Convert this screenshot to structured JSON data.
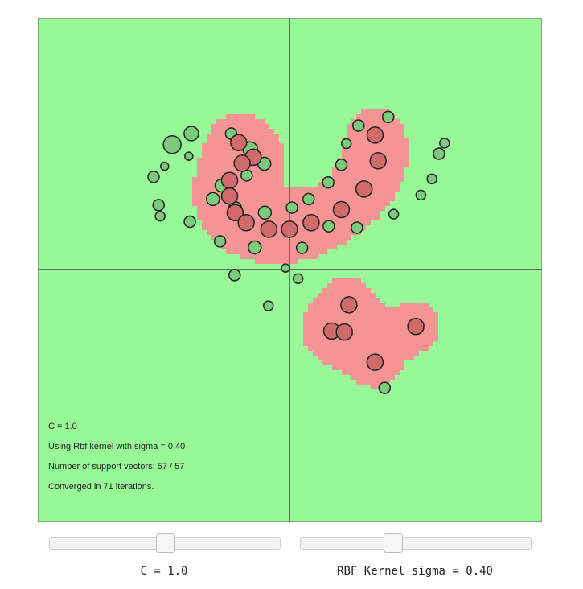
{
  "colors": {
    "class_pos_region": "#98f898",
    "class_neg_region": "#f59494",
    "pos_point": "#7ccb7c",
    "neg_point": "#cf6b6b",
    "axis": "#4f7e4f"
  },
  "info": {
    "c_line": "C = 1.0",
    "kernel_line": "Using Rbf kernel with sigma = 0.40",
    "sv_line": "Number of support vectors: 57 / 57",
    "conv_line": "Converged in 71 iterations."
  },
  "controls": {
    "c_slider": {
      "label": "C = 1.0",
      "value_fraction": 0.5
    },
    "sigma_slider": {
      "label": "RBF Kernel sigma = 0.40",
      "value_fraction": 0.4
    }
  },
  "points": {
    "positive": [
      [
        -1.95,
        2.7
      ],
      [
        -1.16,
        2.7
      ],
      [
        -2.33,
        2.48
      ],
      [
        -0.78,
        2.39
      ],
      [
        -2.0,
        2.25
      ],
      [
        -2.48,
        2.05
      ],
      [
        -0.5,
        2.1
      ],
      [
        -0.85,
        1.87
      ],
      [
        -2.7,
        1.84
      ],
      [
        -1.35,
        1.67
      ],
      [
        -1.52,
        1.4
      ],
      [
        -2.6,
        1.28
      ],
      [
        -1.08,
        1.22
      ],
      [
        -0.49,
        1.13
      ],
      [
        -2.57,
        1.06
      ],
      [
        -1.98,
        0.95
      ],
      [
        -1.38,
        0.56
      ],
      [
        -0.69,
        0.44
      ],
      [
        0.38,
        1.4
      ],
      [
        0.05,
        1.23
      ],
      [
        1.37,
        2.86
      ],
      [
        1.13,
        2.5
      ],
      [
        1.03,
        2.08
      ],
      [
        0.77,
        1.73
      ],
      [
        3.08,
        2.51
      ],
      [
        2.97,
        2.3
      ],
      [
        2.83,
        1.8
      ],
      [
        2.61,
        1.48
      ],
      [
        2.07,
        1.1
      ],
      [
        1.34,
        0.83
      ],
      [
        0.78,
        0.86
      ],
      [
        0.25,
        0.43
      ],
      [
        -0.08,
        0.03
      ],
      [
        0.17,
        -0.18
      ],
      [
        -1.09,
        -0.11
      ],
      [
        -0.42,
        -0.72
      ],
      [
        1.89,
        -2.35
      ],
      [
        1.96,
        3.03
      ]
    ],
    "negative": [
      [
        -1.01,
        2.52
      ],
      [
        -0.72,
        2.23
      ],
      [
        -0.94,
        2.11
      ],
      [
        -1.19,
        1.77
      ],
      [
        -1.19,
        1.46
      ],
      [
        -1.08,
        1.13
      ],
      [
        -0.86,
        0.93
      ],
      [
        -0.41,
        0.8
      ],
      [
        0.0,
        0.8
      ],
      [
        0.43,
        0.93
      ],
      [
        1.03,
        1.19
      ],
      [
        1.48,
        1.6
      ],
      [
        1.76,
        2.16
      ],
      [
        1.7,
        2.67
      ],
      [
        1.18,
        -0.7
      ],
      [
        0.84,
        -1.22
      ],
      [
        1.09,
        -1.24
      ],
      [
        1.7,
        -1.84
      ],
      [
        2.51,
        -1.13
      ]
    ]
  }
}
